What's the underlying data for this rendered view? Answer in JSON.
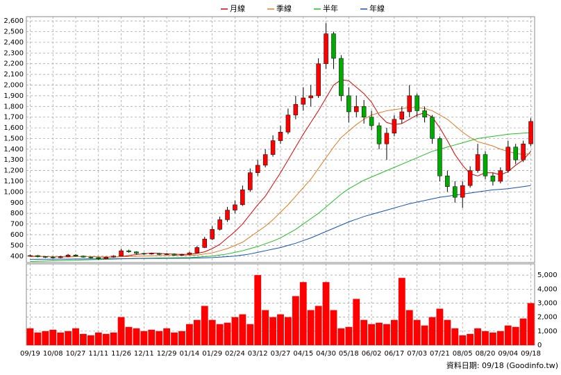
{
  "chart_data": {
    "type": "candlestick",
    "legend": [
      {
        "name": "月線",
        "color": "#e00000"
      },
      {
        "name": "季線",
        "color": "#e07a20"
      },
      {
        "name": "半年",
        "color": "#20c020"
      },
      {
        "name": "年線",
        "color": "#1050c0"
      }
    ],
    "footer": "資料日期: 09/18  (Goodinfo.tw)",
    "categories": [
      "09/19",
      null,
      null,
      "10/08",
      null,
      null,
      "10/27",
      null,
      null,
      "11/11",
      null,
      null,
      "11/26",
      null,
      null,
      "12/11",
      null,
      null,
      "12/29",
      null,
      null,
      "01/14",
      null,
      null,
      "01/29",
      null,
      null,
      "02/24",
      null,
      null,
      "03/12",
      null,
      null,
      "03/27",
      null,
      null,
      "04/15",
      null,
      null,
      "04/30",
      null,
      null,
      "05/18",
      null,
      null,
      "06/02",
      null,
      null,
      "06/17",
      null,
      null,
      "07/03",
      null,
      null,
      "07/21",
      null,
      null,
      "08/05",
      null,
      null,
      "08/20",
      null,
      null,
      "09/04",
      null,
      null,
      "09/18"
    ],
    "up_color": "#ff0000",
    "down_color": "#00aa00",
    "candles": {
      "open": [
        400,
        405,
        395,
        390,
        385,
        395,
        410,
        400,
        390,
        385,
        375,
        390,
        400,
        450,
        440,
        425,
        420,
        425,
        415,
        420,
        410,
        415,
        430,
        480,
        560,
        650,
        740,
        830,
        880,
        1020,
        1180,
        1250,
        1350,
        1480,
        1560,
        1720,
        1820,
        1880,
        1900,
        2200,
        2480,
        2250,
        1900,
        1750,
        1800,
        1700,
        1620,
        1450,
        1550,
        1680,
        1750,
        1900,
        1760,
        1700,
        1500,
        1150,
        1050,
        950,
        1060,
        1200,
        1350,
        1150,
        1100,
        1200,
        1420,
        1300,
        1450
      ],
      "high": [
        415,
        410,
        400,
        398,
        402,
        420,
        418,
        405,
        395,
        390,
        396,
        408,
        470,
        460,
        445,
        432,
        432,
        430,
        428,
        425,
        422,
        440,
        495,
        580,
        680,
        770,
        860,
        920,
        1060,
        1220,
        1300,
        1400,
        1530,
        1620,
        1780,
        1900,
        1980,
        2000,
        2250,
        2580,
        2500,
        2280,
        1980,
        1900,
        1860,
        1760,
        1650,
        1600,
        1720,
        1800,
        2000,
        1920,
        1800,
        1720,
        1520,
        1200,
        1100,
        1100,
        1240,
        1450,
        1380,
        1180,
        1230,
        1480,
        1450,
        1480,
        1690
      ],
      "low": [
        395,
        388,
        382,
        378,
        380,
        390,
        394,
        385,
        378,
        365,
        370,
        385,
        398,
        432,
        418,
        412,
        414,
        408,
        410,
        404,
        404,
        410,
        425,
        475,
        550,
        640,
        720,
        800,
        870,
        1000,
        1150,
        1230,
        1330,
        1450,
        1540,
        1680,
        1760,
        1800,
        1880,
        2150,
        2150,
        1850,
        1650,
        1700,
        1640,
        1580,
        1400,
        1300,
        1520,
        1640,
        1700,
        1700,
        1650,
        1450,
        1100,
        1000,
        900,
        850,
        1040,
        1180,
        1120,
        1060,
        1080,
        1180,
        1260,
        1280,
        1430
      ],
      "close": [
        405,
        395,
        390,
        385,
        395,
        410,
        400,
        390,
        385,
        375,
        390,
        400,
        450,
        440,
        425,
        420,
        425,
        415,
        420,
        410,
        415,
        430,
        480,
        560,
        650,
        740,
        830,
        880,
        1020,
        1180,
        1250,
        1350,
        1480,
        1560,
        1720,
        1820,
        1880,
        1900,
        2200,
        2480,
        2250,
        1900,
        1750,
        1800,
        1700,
        1620,
        1450,
        1550,
        1680,
        1750,
        1900,
        1760,
        1700,
        1500,
        1150,
        1050,
        950,
        1060,
        1200,
        1350,
        1150,
        1100,
        1200,
        1420,
        1300,
        1450,
        1660
      ]
    },
    "series": [
      {
        "name": "月線",
        "color": "#e00000",
        "values": [
          400,
          398,
          396,
          394,
          393,
          393,
          395,
          396,
          395,
          392,
          390,
          390,
          395,
          405,
          415,
          422,
          428,
          425,
          420,
          418,
          416,
          416,
          425,
          440,
          470,
          510,
          570,
          630,
          700,
          790,
          880,
          960,
          1070,
          1180,
          1300,
          1420,
          1540,
          1650,
          1760,
          1880,
          2000,
          2050,
          2040,
          1980,
          1920,
          1840,
          1720,
          1650,
          1630,
          1640,
          1680,
          1720,
          1740,
          1700,
          1600,
          1480,
          1350,
          1250,
          1170,
          1150,
          1180,
          1180,
          1160,
          1190,
          1250,
          1300,
          1380
        ]
      },
      {
        "name": "季線",
        "color": "#e07a20",
        "values": [
          395,
          395,
          395,
          394,
          394,
          394,
          395,
          395,
          395,
          394,
          393,
          393,
          394,
          396,
          398,
          400,
          402,
          404,
          405,
          406,
          406,
          407,
          410,
          420,
          430,
          450,
          470,
          500,
          530,
          580,
          630,
          680,
          740,
          810,
          880,
          960,
          1040,
          1120,
          1220,
          1320,
          1420,
          1510,
          1570,
          1630,
          1680,
          1720,
          1740,
          1760,
          1770,
          1780,
          1790,
          1790,
          1780,
          1760,
          1720,
          1680,
          1620,
          1560,
          1510,
          1470,
          1450,
          1430,
          1400,
          1380,
          1360,
          1350,
          1360
        ]
      },
      {
        "name": "半年",
        "color": "#20c020",
        "values": [
          350,
          352,
          354,
          356,
          358,
          360,
          362,
          364,
          366,
          368,
          370,
          372,
          374,
          376,
          378,
          380,
          381,
          382,
          383,
          384,
          385,
          386,
          390,
          395,
          400,
          410,
          420,
          435,
          450,
          470,
          490,
          515,
          540,
          570,
          610,
          650,
          700,
          750,
          800,
          860,
          920,
          980,
          1030,
          1070,
          1110,
          1140,
          1170,
          1200,
          1230,
          1260,
          1290,
          1320,
          1350,
          1380,
          1400,
          1420,
          1440,
          1460,
          1480,
          1500,
          1510,
          1520,
          1530,
          1540,
          1545,
          1550,
          1555
        ]
      },
      {
        "name": "年線",
        "color": "#1050c0",
        "values": [
          370,
          370,
          371,
          371,
          372,
          372,
          373,
          373,
          374,
          374,
          375,
          375,
          376,
          376,
          377,
          377,
          378,
          378,
          379,
          379,
          380,
          380,
          382,
          384,
          386,
          390,
          395,
          400,
          410,
          420,
          435,
          450,
          465,
          480,
          500,
          520,
          545,
          570,
          600,
          630,
          660,
          690,
          720,
          745,
          770,
          790,
          810,
          830,
          850,
          870,
          890,
          905,
          920,
          935,
          950,
          960,
          970,
          980,
          990,
          1000,
          1010,
          1020,
          1025,
          1030,
          1040,
          1050,
          1060
        ]
      }
    ],
    "volume": {
      "color": "#ff0000",
      "axis": "y2",
      "values": [
        1200,
        900,
        1000,
        1100,
        900,
        1000,
        1200,
        800,
        700,
        900,
        800,
        900,
        2000,
        1300,
        1200,
        1000,
        1100,
        1000,
        1200,
        900,
        1000,
        1500,
        1800,
        2800,
        1800,
        1500,
        1600,
        2000,
        2200,
        1500,
        5000,
        2500,
        2000,
        2200,
        2000,
        3500,
        4500,
        2500,
        2800,
        4500,
        2500,
        1200,
        1300,
        3300,
        1800,
        1500,
        1600,
        1500,
        1800,
        4800,
        2500,
        1800,
        1400,
        2000,
        2600,
        1800,
        1200,
        700,
        800,
        1200,
        1000,
        900,
        1000,
        1400,
        1300,
        1900,
        3000
      ]
    },
    "ylim": [
      340,
      2640
    ],
    "yticks": [
      400,
      500,
      600,
      700,
      800,
      900,
      {
        "value": 1000,
        "label": "1,000"
      },
      {
        "value": 1100,
        "label": "1,100"
      },
      {
        "value": 1200,
        "label": "1,200"
      },
      {
        "value": 1300,
        "label": "1,300"
      },
      {
        "value": 1400,
        "label": "1,400"
      },
      {
        "value": 1500,
        "label": "1,500"
      },
      {
        "value": 1600,
        "label": "1,600"
      },
      {
        "value": 1700,
        "label": "1,700"
      },
      {
        "value": 1800,
        "label": "1,800"
      },
      {
        "value": 1900,
        "label": "1,900"
      },
      {
        "value": 2000,
        "label": "2,000"
      },
      {
        "value": 2100,
        "label": "2,100"
      },
      {
        "value": 2200,
        "label": "2,200"
      },
      {
        "value": 2300,
        "label": "2,300"
      },
      {
        "value": 2400,
        "label": "2,400"
      },
      {
        "value": 2500,
        "label": "2,500"
      },
      {
        "value": 2600,
        "label": "2,600"
      }
    ],
    "y2lim": [
      0,
      5800
    ],
    "y2ticks": [
      0,
      {
        "value": 1000,
        "label": "1,000"
      },
      {
        "value": 2000,
        "label": "2,000"
      },
      {
        "value": 3000,
        "label": "3,000"
      },
      {
        "value": 4000,
        "label": "4,000"
      },
      {
        "value": 5000,
        "label": "5,000"
      }
    ],
    "grid": true
  }
}
